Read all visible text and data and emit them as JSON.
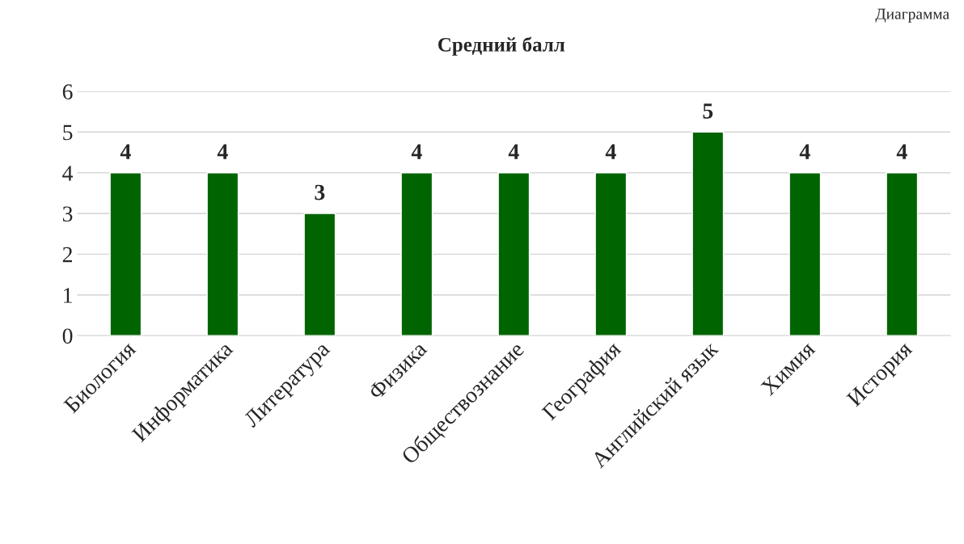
{
  "chart_data": {
    "type": "bar",
    "title": "Средний балл",
    "categories": [
      "Биология",
      "Информатика",
      "Литература",
      "Физика",
      "Обществознание",
      "География",
      "Английский язык",
      "Химия",
      "История"
    ],
    "values": [
      4,
      4,
      3,
      4,
      4,
      4,
      5,
      4,
      4
    ],
    "color": "#006400",
    "ylim": [
      0,
      6
    ],
    "yticks": [
      0,
      1,
      2,
      3,
      4,
      5,
      6
    ],
    "grid": "y",
    "data_labels": true,
    "annotations": [
      "Диаграмма"
    ]
  }
}
